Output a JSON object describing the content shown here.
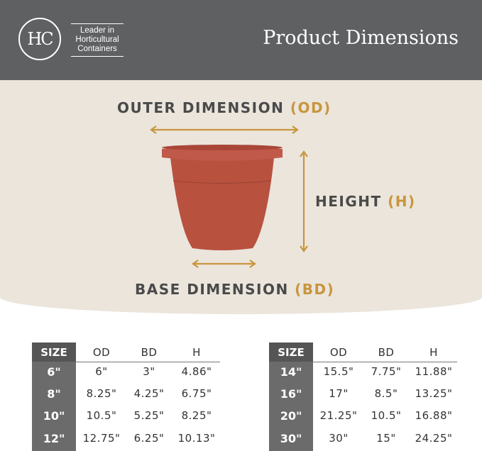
{
  "header": {
    "logo": "HC",
    "tagline": [
      "Leader in",
      "Horticultural",
      "Containers"
    ],
    "title": "Product Dimensions"
  },
  "diagram": {
    "outer": {
      "label": "OUTER DIMENSION",
      "abbr": "(OD)"
    },
    "height": {
      "label": "HEIGHT",
      "abbr": "(H)"
    },
    "base": {
      "label": "BASE DIMENSION",
      "abbr": "(BD)"
    },
    "colors": {
      "arrow": "#c9953e",
      "pot": "#b9513f",
      "text": "#4a4a4a"
    }
  },
  "tables": [
    {
      "headers": [
        "SIZE",
        "OD",
        "BD",
        "H"
      ],
      "rows": [
        [
          "6\"",
          "6\"",
          "3\"",
          "4.86\""
        ],
        [
          "8\"",
          "8.25\"",
          "4.25\"",
          "6.75\""
        ],
        [
          "10\"",
          "10.5\"",
          "5.25\"",
          "8.25\""
        ],
        [
          "12\"",
          "12.75\"",
          "6.25\"",
          "10.13\""
        ]
      ]
    },
    {
      "headers": [
        "SIZE",
        "OD",
        "BD",
        "H"
      ],
      "rows": [
        [
          "14\"",
          "15.5\"",
          "7.75\"",
          "11.88\""
        ],
        [
          "16\"",
          "17\"",
          "8.5\"",
          "13.25\""
        ],
        [
          "20\"",
          "21.25\"",
          "10.5\"",
          "16.88\""
        ],
        [
          "30\"",
          "30\"",
          "15\"",
          "24.25\""
        ]
      ]
    }
  ]
}
